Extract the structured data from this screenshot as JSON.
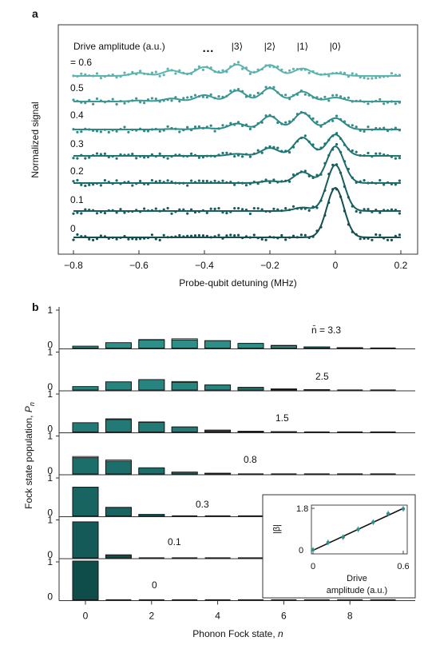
{
  "chart_data": [
    {
      "panel": "a",
      "type": "line",
      "xlabel": "Probe-qubit detuning (MHz)",
      "ylabel": "Normalized signal",
      "xlim": [
        -0.85,
        0.22
      ],
      "xticks": [
        -0.8,
        -0.6,
        -0.4,
        -0.2,
        0,
        0.2
      ],
      "xtick_labels": [
        "−0.8",
        "−0.6",
        "−0.4",
        "−0.2",
        "0",
        "0.2"
      ],
      "legend_title": "Drive amplitude (a.u.)",
      "fock_labels": [
        {
          "label": "|3⟩",
          "x": -0.3
        },
        {
          "label": "|2⟩",
          "x": -0.2
        },
        {
          "label": "|1⟩",
          "x": -0.1
        },
        {
          "label": "|0⟩",
          "x": 0.0
        }
      ],
      "ellipsis": "…",
      "peak_centers": [
        0,
        -0.1,
        -0.2,
        -0.3,
        -0.4,
        -0.5,
        -0.6
      ],
      "series": [
        {
          "label": "= 0.6",
          "color": "#5db3ae",
          "populations": [
            0.05,
            0.15,
            0.22,
            0.23,
            0.18,
            0.11,
            0.06
          ]
        },
        {
          "label": "0.5",
          "color": "#3d9893",
          "populations": [
            0.08,
            0.2,
            0.27,
            0.22,
            0.13,
            0.06,
            0.02
          ]
        },
        {
          "label": "0.4",
          "color": "#2d8a86",
          "populations": [
            0.23,
            0.34,
            0.27,
            0.12,
            0.03,
            0.01,
            0
          ]
        },
        {
          "label": "0.3",
          "color": "#1f7674",
          "populations": [
            0.43,
            0.37,
            0.16,
            0.04,
            0,
            0,
            0
          ]
        },
        {
          "label": "0.2",
          "color": "#1a6b69",
          "populations": [
            0.74,
            0.22,
            0.04,
            0,
            0,
            0,
            0
          ]
        },
        {
          "label": "0.1",
          "color": "#175e5d",
          "populations": [
            0.93,
            0.07,
            0,
            0,
            0,
            0,
            0
          ]
        },
        {
          "label": "0",
          "color": "#144f50",
          "populations": [
            1,
            0,
            0,
            0,
            0,
            0,
            0
          ]
        }
      ]
    },
    {
      "panel": "b",
      "type": "bar",
      "xlabel": "Phonon Fock state, n",
      "ylabel": "Fock state population, P_n",
      "categories": [
        0,
        1,
        2,
        3,
        4,
        5,
        6,
        7,
        8,
        9
      ],
      "xticks": [
        0,
        2,
        4,
        6,
        8
      ],
      "ylim": [
        0,
        1
      ],
      "yticks": [
        0,
        1
      ],
      "rows": [
        {
          "nbar": "n̄ = 3.3",
          "color": "#2e8f88",
          "measured": [
            0.05,
            0.14,
            0.21,
            0.21,
            0.19,
            0.12,
            0.06,
            0.03,
            0.01,
            0.0
          ],
          "theory": [
            0.04,
            0.13,
            0.22,
            0.24,
            0.19,
            0.12,
            0.07,
            0.03,
            0.01,
            0.0
          ]
        },
        {
          "nbar": "2.5",
          "color": "#28847f",
          "measured": [
            0.09,
            0.21,
            0.27,
            0.2,
            0.13,
            0.06,
            0.02,
            0.01,
            0,
            0
          ],
          "theory": [
            0.08,
            0.21,
            0.26,
            0.22,
            0.13,
            0.07,
            0.03,
            0.01,
            0,
            0
          ]
        },
        {
          "nbar": "1.5",
          "color": "#227a76",
          "measured": [
            0.24,
            0.32,
            0.25,
            0.13,
            0.03,
            0.02,
            0.01,
            0,
            0,
            0
          ],
          "theory": [
            0.22,
            0.34,
            0.26,
            0.13,
            0.05,
            0.01,
            0,
            0,
            0,
            0
          ]
        },
        {
          "nbar": "0.8",
          "color": "#1c6e6b",
          "measured": [
            0.42,
            0.33,
            0.16,
            0.05,
            0.02,
            0,
            0,
            0,
            0,
            0
          ],
          "theory": [
            0.45,
            0.36,
            0.14,
            0.04,
            0.01,
            0,
            0,
            0,
            0,
            0
          ]
        },
        {
          "nbar": "0.3",
          "color": "#186461",
          "measured": [
            0.74,
            0.22,
            0.04,
            0,
            0,
            0,
            0,
            0,
            0,
            0
          ],
          "theory": [
            0.74,
            0.22,
            0.03,
            0,
            0,
            0,
            0,
            0,
            0,
            0
          ]
        },
        {
          "nbar": "0.1",
          "color": "#145a58",
          "measured": [
            0.93,
            0.06,
            0,
            0,
            0,
            0,
            0,
            0,
            0,
            0
          ],
          "theory": [
            0.91,
            0.08,
            0,
            0,
            0,
            0,
            0,
            0,
            0,
            0
          ]
        },
        {
          "nbar": "0",
          "color": "#0f4d4b",
          "measured": [
            1,
            0,
            0,
            0,
            0,
            0,
            0,
            0,
            0,
            0
          ],
          "theory": [
            1,
            0,
            0,
            0,
            0,
            0,
            0,
            0,
            0,
            0
          ]
        }
      ]
    },
    {
      "panel": "b-inset",
      "type": "scatter",
      "xlabel_line1": "Drive",
      "xlabel_line2": "amplitude (a.u.)",
      "ylabel": "|β|",
      "xlim": [
        0,
        0.6
      ],
      "ylim": [
        0,
        1.8
      ],
      "xtick_labels": [
        "0",
        "0.6"
      ],
      "ytick_labels": [
        "0",
        "1.8"
      ],
      "x": [
        0,
        0.1,
        0.2,
        0.3,
        0.4,
        0.5,
        0.6
      ],
      "y": [
        0,
        0.32,
        0.55,
        0.89,
        1.2,
        1.57,
        1.78
      ],
      "fit": {
        "x": [
          0,
          0.6
        ],
        "y": [
          -0.02,
          1.8
        ]
      }
    }
  ]
}
